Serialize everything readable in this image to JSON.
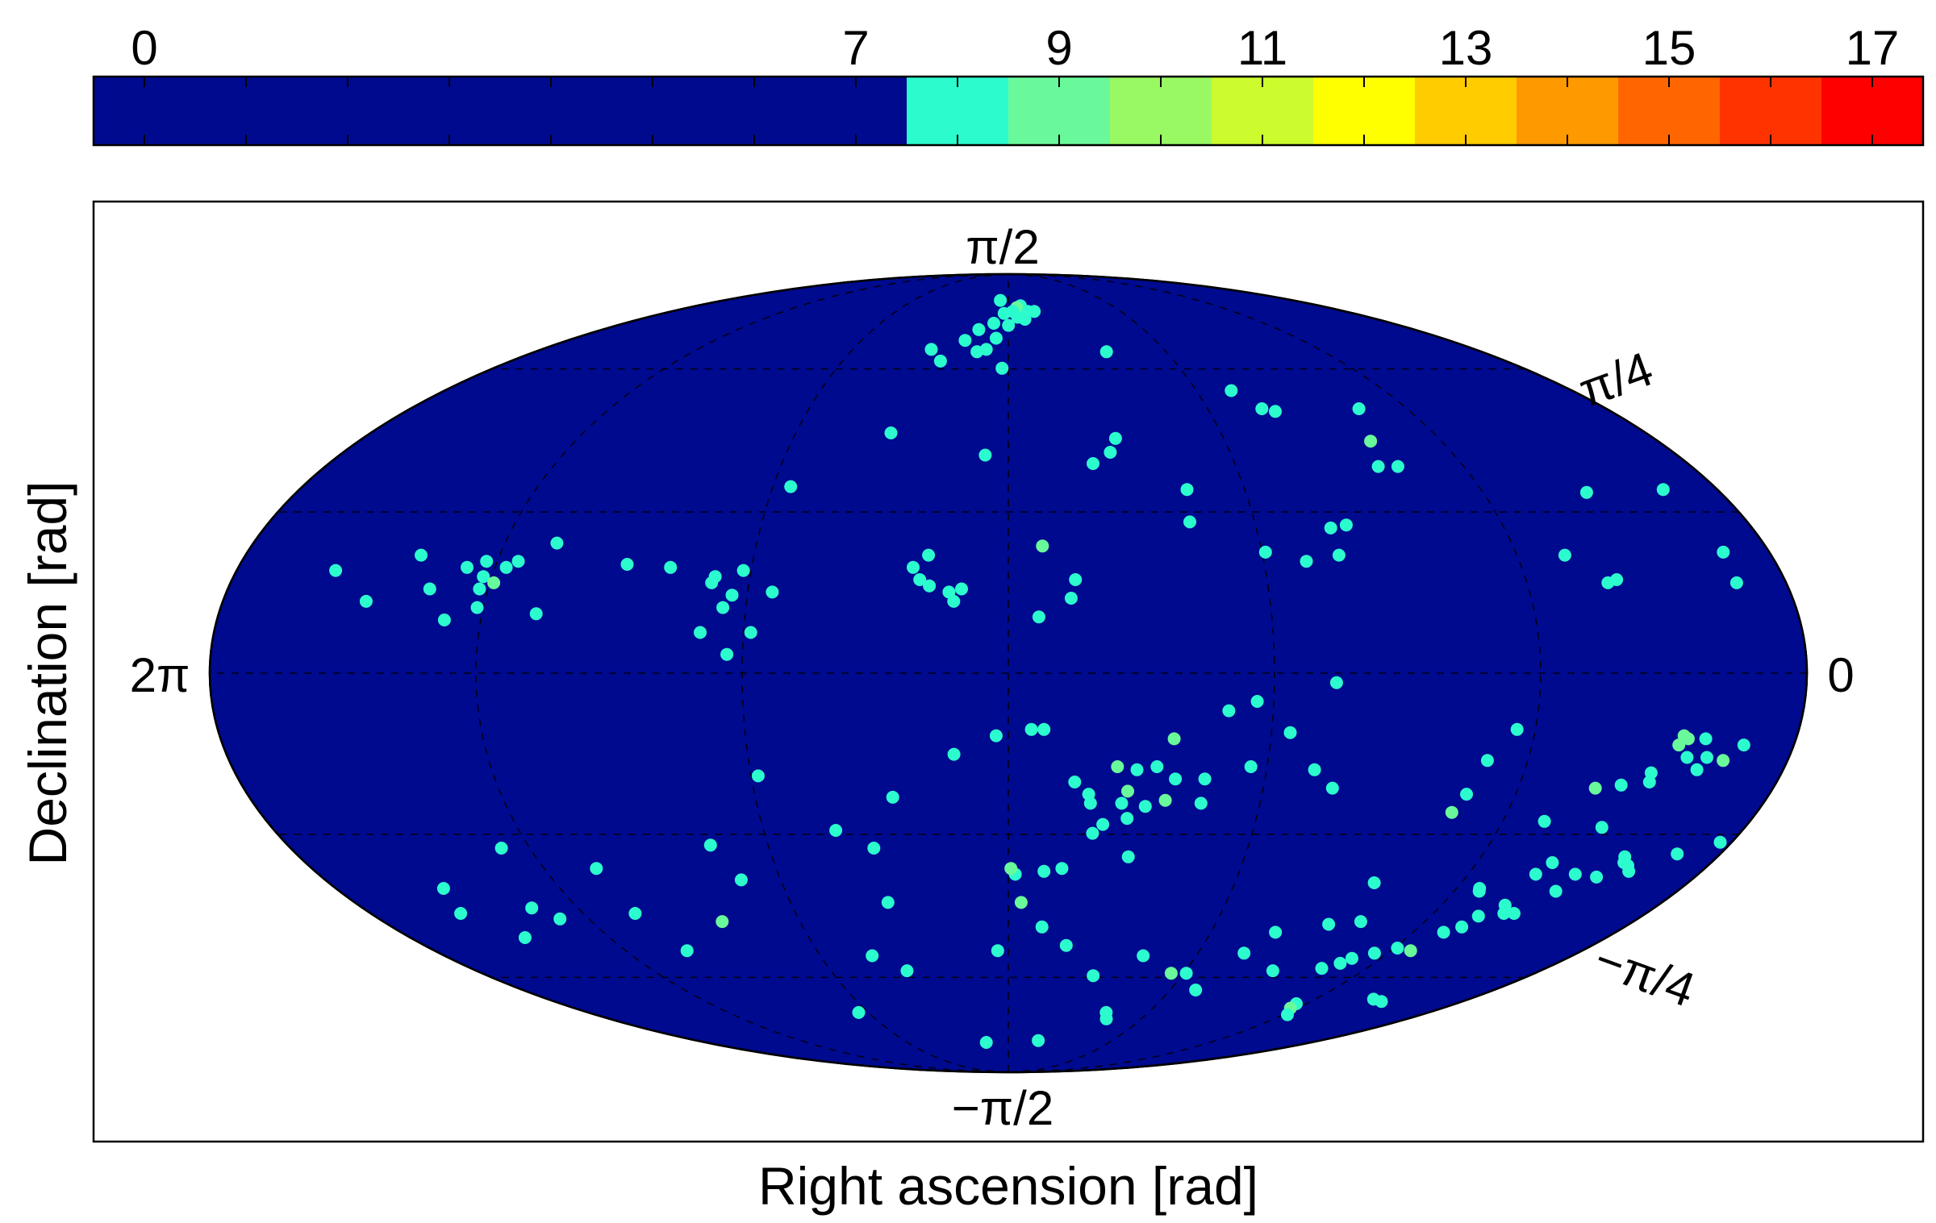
{
  "chart_data": {
    "type": "scatter",
    "projection": "mollweide",
    "xlabel": "Right ascension [rad]",
    "ylabel": "Declination [rad]",
    "grid": true,
    "colorbar": {
      "location": "top",
      "tick_labels": [
        "0",
        "7",
        "9",
        "11",
        "13",
        "15",
        "17"
      ],
      "tick_values": [
        0,
        7,
        9,
        11,
        13,
        15,
        17
      ],
      "range": [
        -0.5,
        17.5
      ],
      "colors": {
        "low": "#000a8f",
        "7.5-8.5": "#2cfbce",
        "8.5-9.5": "#6af99a",
        "9.5-10.5": "#99f962",
        "10.5-11.5": "#ccfb2e",
        "11.5-12.5": "#ffff00",
        "12.5-13.5": "#ffcc00",
        "13.5-14.5": "#ff9900",
        "14.5-15.5": "#ff6600",
        "15.5-16.5": "#ff3300",
        "16.5-17.5": "#ff0000"
      }
    },
    "background_color": "#000a8f",
    "ra_tick_labels": {
      "left": "2π",
      "right": "0"
    },
    "dec_tick_labels": {
      "top": "π/2",
      "upper": "π/4",
      "lower": "−π/4",
      "bottom": "−π/2"
    },
    "point_units": [
      "ra_rad",
      "dec_rad",
      "value"
    ],
    "points": [
      [
        3.23,
        1.37,
        8
      ],
      [
        3.02,
        1.34,
        8
      ],
      [
        3.06,
        1.33,
        9
      ],
      [
        2.96,
        1.31,
        8
      ],
      [
        3.1,
        1.31,
        8
      ],
      [
        3.18,
        1.3,
        8
      ],
      [
        2.9,
        1.31,
        8
      ],
      [
        3.06,
        1.28,
        8
      ],
      [
        3.0,
        1.27,
        8
      ],
      [
        3.26,
        1.25,
        8
      ],
      [
        3.14,
        1.24,
        8
      ],
      [
        3.37,
        1.22,
        8
      ],
      [
        3.23,
        1.18,
        8
      ],
      [
        3.45,
        1.17,
        8
      ],
      [
        3.66,
        1.13,
        8
      ],
      [
        3.29,
        1.13,
        8
      ],
      [
        3.35,
        1.12,
        8
      ],
      [
        3.57,
        1.08,
        8
      ],
      [
        3.18,
        1.05,
        8
      ],
      [
        2.49,
        1.12,
        8
      ],
      [
        2.75,
        0.69,
        8
      ],
      [
        3.25,
        0.72,
        8
      ],
      [
        3.72,
        0.8,
        8
      ],
      [
        1.9,
        0.96,
        8
      ],
      [
        1.81,
        0.89,
        8
      ],
      [
        1.75,
        0.88,
        8
      ],
      [
        1.3,
        0.89,
        8
      ],
      [
        1.39,
        0.77,
        9
      ],
      [
        1.44,
        0.68,
        8
      ],
      [
        1.35,
        0.68,
        8
      ],
      [
        2.62,
        0.78,
        8
      ],
      [
        2.66,
        0.73,
        8
      ],
      [
        2.35,
        0.6,
        8
      ],
      [
        3.0,
        0.41,
        9
      ],
      [
        1.78,
        0.47,
        8
      ],
      [
        1.71,
        0.48,
        8
      ],
      [
        2.08,
        0.39,
        8
      ],
      [
        2.37,
        0.49,
        8
      ],
      [
        1.92,
        0.36,
        8
      ],
      [
        1.78,
        0.38,
        8
      ],
      [
        0.59,
        0.59,
        8
      ],
      [
        0.85,
        0.38,
        8
      ],
      [
        0.68,
        0.3,
        8
      ],
      [
        0.72,
        0.29,
        8
      ],
      [
        0.24,
        0.6,
        8
      ],
      [
        0.2,
        0.29,
        8
      ],
      [
        3.47,
        0.38,
        8
      ],
      [
        3.53,
        0.34,
        8
      ],
      [
        3.5,
        0.3,
        8
      ],
      [
        3.46,
        0.28,
        8
      ],
      [
        3.38,
        0.26,
        8
      ],
      [
        3.36,
        0.23,
        8
      ],
      [
        3.33,
        0.27,
        8
      ],
      [
        2.89,
        0.24,
        8
      ],
      [
        2.87,
        0.3,
        8
      ],
      [
        3.02,
        0.18,
        8
      ],
      [
        4.11,
        0.61,
        8
      ],
      [
        4.52,
        0.34,
        8
      ],
      [
        4.22,
        0.33,
        8
      ],
      [
        4.7,
        0.35,
        8
      ],
      [
        4.33,
        0.31,
        8
      ],
      [
        4.34,
        0.29,
        8
      ],
      [
        4.09,
        0.26,
        8
      ],
      [
        4.25,
        0.25,
        8
      ],
      [
        4.28,
        0.21,
        8
      ],
      [
        4.16,
        0.13,
        8
      ],
      [
        4.25,
        0.06,
        8
      ],
      [
        4.36,
        0.13,
        8
      ],
      [
        5.02,
        0.42,
        8
      ],
      [
        5.56,
        0.38,
        8
      ],
      [
        5.15,
        0.36,
        8
      ],
      [
        5.19,
        0.34,
        8
      ],
      [
        5.28,
        0.36,
        8
      ],
      [
        5.35,
        0.34,
        8
      ],
      [
        5.27,
        0.31,
        8
      ],
      [
        5.22,
        0.29,
        9
      ],
      [
        5.27,
        0.27,
        8
      ],
      [
        5.26,
        0.21,
        8
      ],
      [
        5.47,
        0.27,
        8
      ],
      [
        5.71,
        0.23,
        8
      ],
      [
        5.02,
        0.19,
        8
      ],
      [
        5.38,
        0.17,
        8
      ],
      [
        5.88,
        0.33,
        8
      ],
      [
        0.19,
        0.39,
        8
      ],
      [
        0.61,
        -0.5,
        8
      ],
      [
        0.41,
        -0.27,
        8
      ],
      [
        0.45,
        -0.2,
        9
      ],
      [
        0.43,
        -0.21,
        9
      ],
      [
        0.46,
        -0.23,
        9
      ],
      [
        0.36,
        -0.21,
        8
      ],
      [
        0.33,
        -0.27,
        8
      ],
      [
        0.35,
        -0.31,
        8
      ],
      [
        0.26,
        -0.28,
        9
      ],
      [
        0.53,
        -0.32,
        8
      ],
      [
        0.52,
        -0.35,
        8
      ],
      [
        0.73,
        -0.37,
        9
      ],
      [
        0.63,
        -0.36,
        8
      ],
      [
        0.87,
        -0.48,
        8
      ],
      [
        0.2,
        -0.23,
        8
      ],
      [
        0.05,
        -0.55,
        8
      ],
      [
        0.19,
        -0.59,
        8
      ],
      [
        0.41,
        -0.6,
        8
      ],
      [
        0.39,
        -0.62,
        8
      ],
      [
        0.36,
        -0.63,
        8
      ],
      [
        0.33,
        -0.65,
        8
      ],
      [
        1.12,
        -0.18,
        8
      ],
      [
        1.21,
        -0.28,
        8
      ],
      [
        1.28,
        -0.45,
        9
      ],
      [
        1.25,
        -0.39,
        8
      ],
      [
        1.45,
        -0.69,
        8
      ],
      [
        0.56,
        -0.66,
        8
      ],
      [
        0.71,
        -0.62,
        8
      ],
      [
        0.74,
        -0.66,
        8
      ],
      [
        0.93,
        -0.72,
        8
      ],
      [
        0.94,
        -0.71,
        8
      ],
      [
        0.7,
        -0.8,
        8
      ],
      [
        1.85,
        -0.03,
        8
      ],
      [
        2.16,
        -0.09,
        8
      ],
      [
        2.27,
        -0.12,
        8
      ],
      [
        2.16,
        -0.3,
        8
      ],
      [
        2.34,
        -0.34,
        8
      ],
      [
        2.48,
        -0.21,
        9
      ],
      [
        2.46,
        -0.34,
        8
      ],
      [
        2.34,
        -0.42,
        8
      ],
      [
        2.54,
        -0.3,
        8
      ],
      [
        2.64,
        -0.47,
        8
      ],
      [
        2.61,
        -0.6,
        8
      ],
      [
        2.02,
        -0.19,
        8
      ],
      [
        1.9,
        -0.31,
        8
      ],
      [
        1.81,
        -0.37,
        8
      ],
      [
        2.62,
        -0.31,
        8
      ],
      [
        2.7,
        -0.3,
        9
      ],
      [
        2.8,
        -0.42,
        8
      ],
      [
        2.87,
        -0.35,
        8
      ],
      [
        2.81,
        -0.39,
        8
      ],
      [
        2.67,
        -0.42,
        8
      ],
      [
        2.78,
        -0.52,
        8
      ],
      [
        2.74,
        -0.49,
        8
      ],
      [
        2.65,
        -0.38,
        9
      ],
      [
        2.57,
        -0.43,
        8
      ],
      [
        2.49,
        -0.41,
        9
      ],
      [
        3.05,
        -0.18,
        8
      ],
      [
        3.0,
        -0.18,
        8
      ],
      [
        3.19,
        -0.2,
        8
      ],
      [
        3.36,
        -0.26,
        8
      ],
      [
        4.16,
        -0.33,
        8
      ],
      [
        3.62,
        -0.4,
        8
      ],
      [
        3.73,
        -0.57,
        8
      ],
      [
        4.44,
        -0.56,
        8
      ],
      [
        4.37,
        -0.68,
        8
      ],
      [
        3.88,
        -0.51,
        8
      ],
      [
        3.72,
        -0.76,
        8
      ],
      [
        3.11,
        -0.66,
        8
      ],
      [
        2.98,
        -0.65,
        8
      ],
      [
        2.9,
        -0.64,
        8
      ],
      [
        3.13,
        -0.64,
        9
      ],
      [
        3.08,
        -0.76,
        9
      ],
      [
        2.97,
        -0.85,
        8
      ],
      [
        2.83,
        -0.92,
        8
      ],
      [
        3.2,
        -0.94,
        8
      ],
      [
        2.84,
        -1.34,
        8
      ],
      [
        2.41,
        -1.2,
        8
      ],
      [
        2.08,
        -1.03,
        8
      ],
      [
        2.17,
        -1.03,
        9
      ],
      [
        2.39,
        -0.96,
        8
      ],
      [
        1.93,
        -1.1,
        8
      ],
      [
        1.58,
        -1.02,
        8
      ],
      [
        1.31,
        -1.01,
        8
      ],
      [
        1.21,
        -0.97,
        8
      ],
      [
        1.12,
        -0.95,
        8
      ],
      [
        1.03,
        -0.93,
        8
      ],
      [
        0.94,
        -0.94,
        9
      ],
      [
        0.89,
        -0.87,
        8
      ],
      [
        0.81,
        -0.81,
        8
      ],
      [
        0.74,
        -0.77,
        8
      ],
      [
        0.83,
        -0.85,
        8
      ],
      [
        0.65,
        -0.8,
        8
      ],
      [
        0.57,
        -0.72,
        8
      ],
      [
        0.45,
        -0.67,
        8
      ],
      [
        0.65,
        -1.14,
        8
      ],
      [
        0.56,
        -1.15,
        8
      ],
      [
        1.12,
        -1.16,
        8
      ],
      [
        1.1,
        -1.18,
        9
      ],
      [
        1.02,
        -1.21,
        8
      ],
      [
        1.52,
        -0.84,
        8
      ],
      [
        1.37,
        -0.83,
        8
      ],
      [
        1.24,
        -0.99,
        8
      ],
      [
        1.84,
        -0.95,
        8
      ],
      [
        1.76,
        -0.87,
        8
      ],
      [
        2.63,
        -1.04,
        8
      ],
      [
        2.37,
        -1.23,
        8
      ],
      [
        5.36,
        -0.57,
        8
      ],
      [
        5.0,
        -0.64,
        8
      ],
      [
        5.78,
        -0.71,
        8
      ],
      [
        5.84,
        -0.8,
        8
      ],
      [
        4.98,
        -0.8,
        8
      ],
      [
        5.68,
        -0.89,
        8
      ],
      [
        5.46,
        -0.78,
        8
      ],
      [
        5.38,
        -0.82,
        8
      ],
      [
        4.9,
        -0.94,
        8
      ],
      [
        4.26,
        -1.2,
        8
      ],
      [
        3.37,
        -1.35,
        8
      ],
      [
        3.74,
        -1.02,
        8
      ],
      [
        3.9,
        -0.96,
        8
      ],
      [
        4.58,
        -0.83,
        9
      ]
    ]
  }
}
